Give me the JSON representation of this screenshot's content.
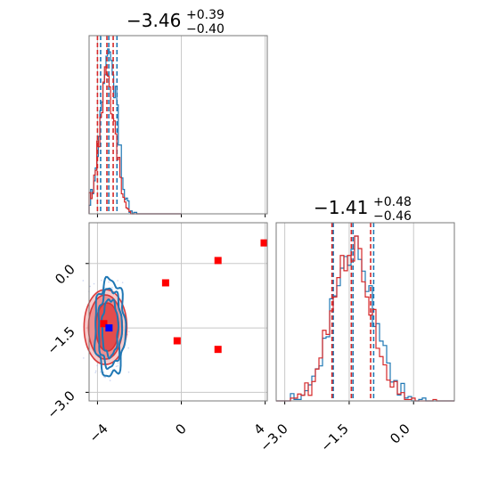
{
  "colors": {
    "blue": "#1f77b4",
    "red": "#d62728",
    "grid": "#c8c8c8",
    "axes": "#7a7a7a",
    "marker_red": "#ff0000",
    "marker_blue": "#0000ff"
  },
  "chart_data": {
    "type": "corner",
    "parameter_titles": [
      {
        "value": "−3.46",
        "upper": "+0.39",
        "lower": "−0.40"
      },
      {
        "value": "−1.41",
        "upper": "+0.48",
        "lower": "−0.46"
      }
    ],
    "x_tick_labels_param1": [
      "−4",
      "0",
      "4"
    ],
    "y_tick_labels_param2": [
      "0.0",
      "−1.5",
      "−3.0"
    ],
    "x_tick_labels_param2": [
      "−3.0",
      "−1.5",
      "0.0"
    ],
    "param1_range": [
      -4.4,
      4.1
    ],
    "param2_range": [
      -3.2,
      0.95
    ],
    "grid": true,
    "series": [
      {
        "color": "blue",
        "param1_quantiles": [
          -3.85,
          -3.46,
          -3.07
        ],
        "param2_quantiles": [
          -1.87,
          -1.41,
          -0.93
        ]
      },
      {
        "color": "red",
        "param1_quantiles": [
          -4.0,
          -3.55,
          -3.25
        ],
        "param2_quantiles": [
          -1.9,
          -1.45,
          -1.0
        ]
      }
    ],
    "red_markers": [
      {
        "x": 3.95,
        "y": 0.48
      },
      {
        "x": 1.75,
        "y": 0.07
      },
      {
        "x": -0.75,
        "y": -0.45
      },
      {
        "x": -0.2,
        "y": -1.8
      },
      {
        "x": 1.75,
        "y": -2.0
      },
      {
        "x": -3.7,
        "y": -1.4
      }
    ],
    "blue_markers": [
      {
        "x": -3.45,
        "y": -1.5
      }
    ]
  }
}
